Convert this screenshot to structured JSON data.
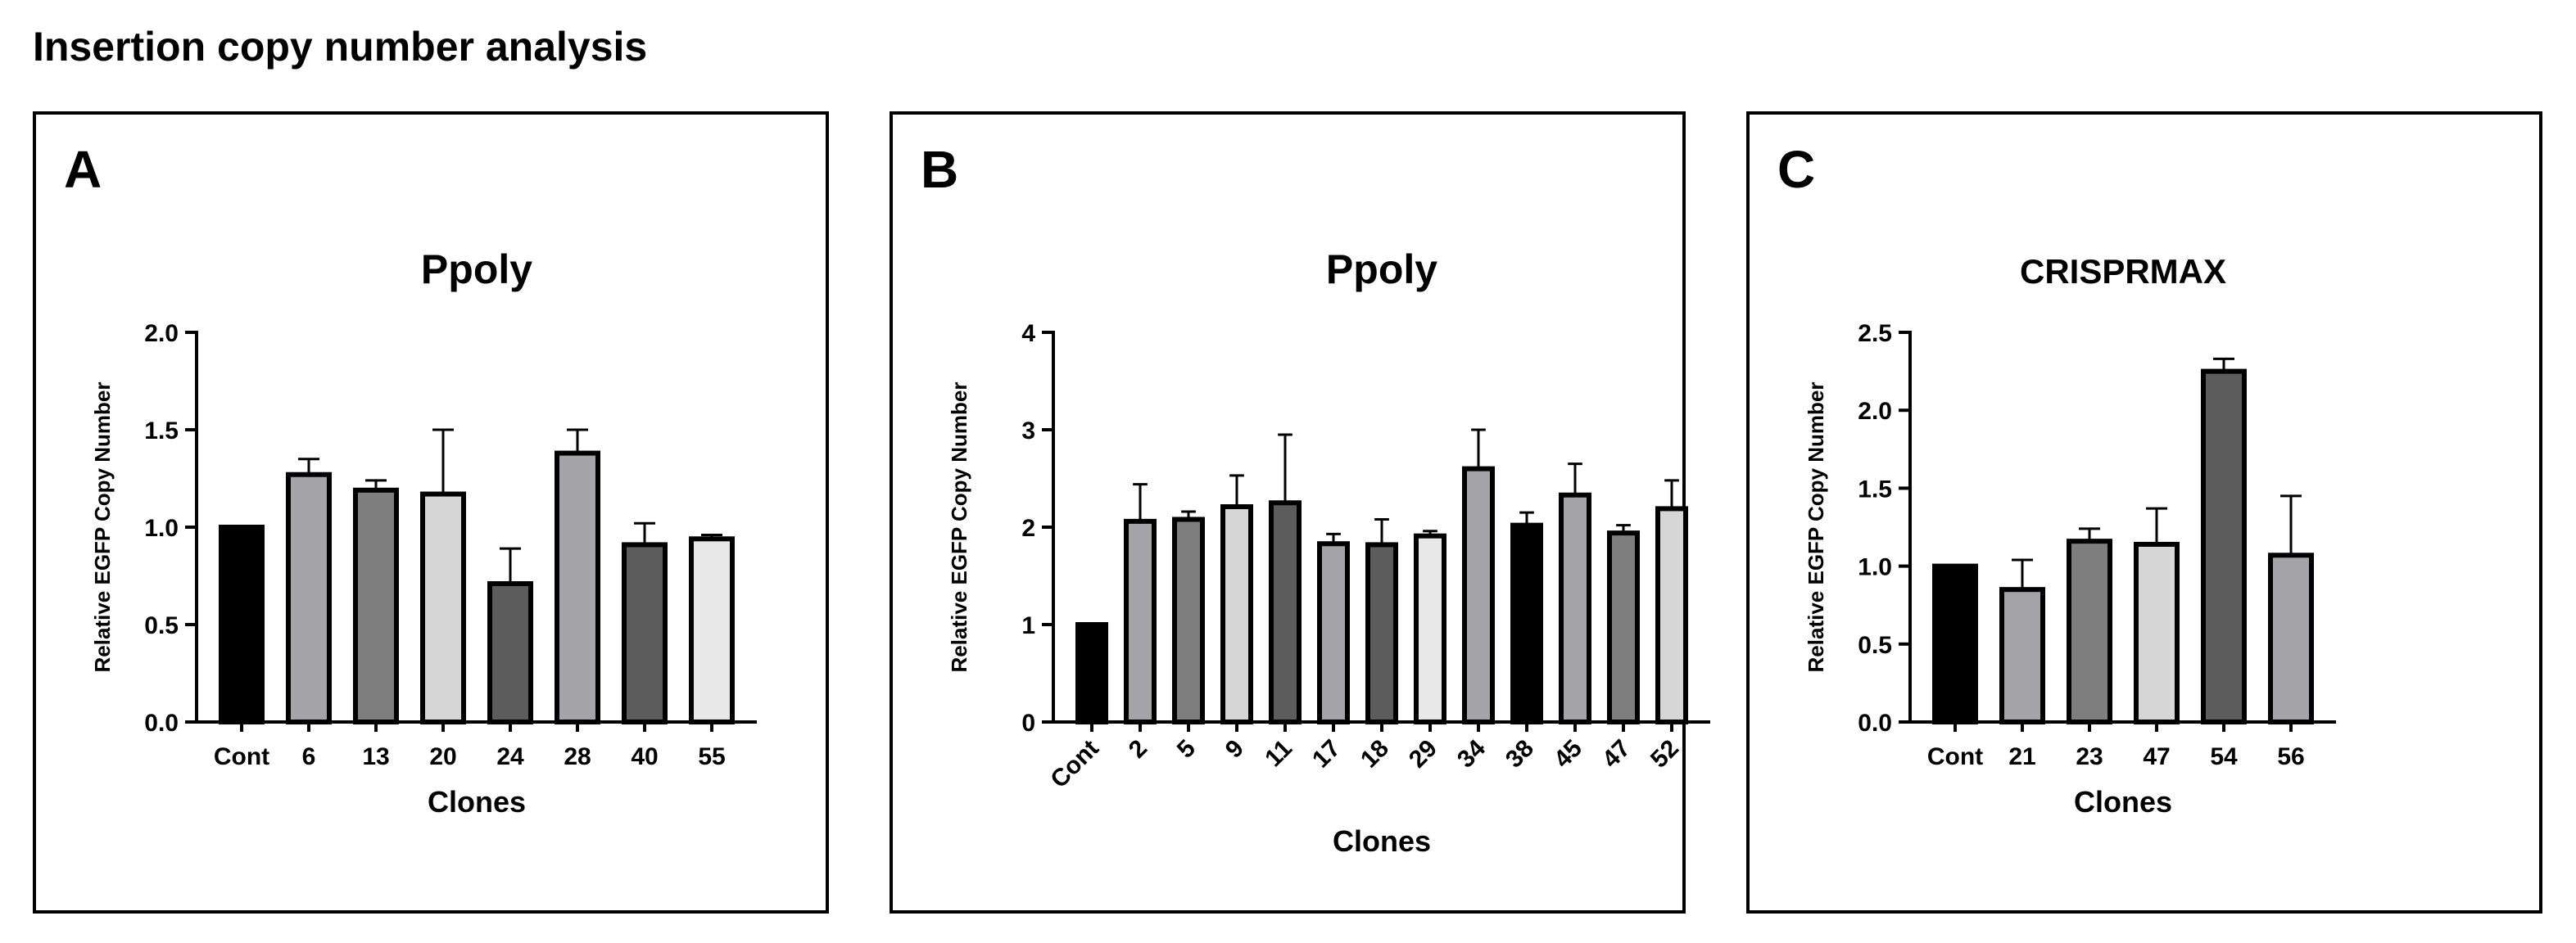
{
  "page": {
    "title": "Insertion copy number analysis"
  },
  "colors": {
    "axis": "#000000",
    "bar_stroke": "#000000"
  },
  "chart_data": [
    {
      "panel": "A",
      "type": "bar",
      "title": "Ppoly",
      "xlabel": "Clones",
      "ylabel": "Relative EGFP Copy Number",
      "ylim": [
        0,
        2.0
      ],
      "yticks": [
        0,
        0.5,
        1.0,
        1.5,
        2.0
      ],
      "ytick_labels": [
        "0.0",
        "0.5",
        "1.0",
        "1.5",
        "2.0"
      ],
      "categories": [
        "Cont",
        "6",
        "13",
        "20",
        "24",
        "28",
        "40",
        "55"
      ],
      "values": [
        1.0,
        1.27,
        1.19,
        1.17,
        0.71,
        1.38,
        0.91,
        0.94
      ],
      "errors": [
        0,
        0.08,
        0.05,
        0.33,
        0.18,
        0.12,
        0.11,
        0.02
      ],
      "bar_colors": [
        "#000000",
        "#a3a3a8",
        "#7e7e7e",
        "#d6d6d6",
        "#5c5c5c",
        "#a3a3a8",
        "#5c5c5c",
        "#e8e8e8"
      ],
      "rotate_labels": false
    },
    {
      "panel": "B",
      "type": "bar",
      "title": "Ppoly",
      "xlabel": "Clones",
      "ylabel": "Relative EGFP Copy Number",
      "ylim": [
        0,
        4
      ],
      "yticks": [
        0,
        1,
        2,
        3,
        4
      ],
      "ytick_labels": [
        "0",
        "1",
        "2",
        "3",
        "4"
      ],
      "categories": [
        "Cont",
        "2",
        "5",
        "9",
        "11",
        "17",
        "18",
        "29",
        "34",
        "38",
        "45",
        "47",
        "52"
      ],
      "values": [
        1.0,
        2.06,
        2.08,
        2.21,
        2.25,
        1.83,
        1.82,
        1.91,
        2.6,
        2.02,
        2.33,
        1.94,
        2.19
      ],
      "errors": [
        0,
        0.38,
        0.08,
        0.32,
        0.7,
        0.1,
        0.26,
        0.05,
        0.4,
        0.13,
        0.32,
        0.08,
        0.29
      ],
      "bar_colors": [
        "#000000",
        "#a3a3a8",
        "#7e7e7e",
        "#d6d6d6",
        "#5c5c5c",
        "#a3a3a8",
        "#5c5c5c",
        "#e8e8e8",
        "#a3a3a8",
        "#000000",
        "#a3a3a8",
        "#7e7e7e",
        "#d6d6d6"
      ],
      "rotate_labels": true
    },
    {
      "panel": "C",
      "type": "bar",
      "title": "CRISPRMAX",
      "xlabel": "Clones",
      "ylabel": "Relative EGFP Copy Number",
      "ylim": [
        0,
        2.5
      ],
      "yticks": [
        0,
        0.5,
        1.0,
        1.5,
        2.0,
        2.5
      ],
      "ytick_labels": [
        "0.0",
        "0.5",
        "1.0",
        "1.5",
        "2.0",
        "2.5"
      ],
      "categories": [
        "Cont",
        "21",
        "23",
        "47",
        "54",
        "56"
      ],
      "values": [
        1.0,
        0.85,
        1.16,
        1.14,
        2.25,
        1.07
      ],
      "errors": [
        0,
        0.19,
        0.08,
        0.23,
        0.08,
        0.38
      ],
      "bar_colors": [
        "#000000",
        "#a3a3a8",
        "#7e7e7e",
        "#d6d6d6",
        "#5c5c5c",
        "#a3a3a8"
      ],
      "rotate_labels": false
    }
  ]
}
